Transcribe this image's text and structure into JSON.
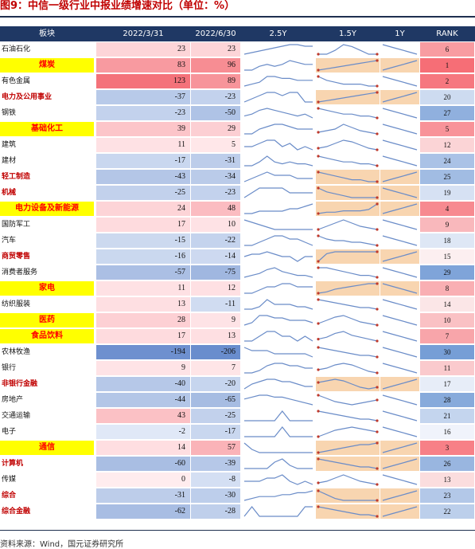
{
  "title": "图9：中信一级行业中报业绩增速对比（单位：%）",
  "source": "资料来源：Wind，国元证券研究所",
  "columns": [
    "板块",
    "2022/3/31",
    "2022/6/30",
    "2.5Y",
    "1.5Y",
    "1Y",
    "RANK"
  ],
  "colors": {
    "header_bg": "#1f3864",
    "highlight_bg": "#ffff00",
    "highlight_text": "#ff0000",
    "spark_line": "#6a8cc8",
    "spark_bg_orange": "#f8d5b0",
    "spark_point": "#c0392b"
  },
  "chart_data": {
    "type": "table",
    "rows": [
      {
        "name": "石油石化",
        "q1": 23,
        "h1": 23,
        "rank": 6,
        "style": "normal"
      },
      {
        "name": "煤炭",
        "q1": 83,
        "h1": 96,
        "rank": 1,
        "style": "hl"
      },
      {
        "name": "有色金属",
        "q1": 123,
        "h1": 89,
        "rank": 2,
        "style": "normal"
      },
      {
        "name": "电力及公用事业",
        "q1": -37,
        "h1": -23,
        "rank": 20,
        "style": "bold"
      },
      {
        "name": "钢铁",
        "q1": -23,
        "h1": -50,
        "rank": 27,
        "style": "normal"
      },
      {
        "name": "基础化工",
        "q1": 39,
        "h1": 29,
        "rank": 5,
        "style": "hl"
      },
      {
        "name": "建筑",
        "q1": 11,
        "h1": 5,
        "rank": 12,
        "style": "normal"
      },
      {
        "name": "建材",
        "q1": -17,
        "h1": -31,
        "rank": 24,
        "style": "normal"
      },
      {
        "name": "轻工制造",
        "q1": -43,
        "h1": -34,
        "rank": 25,
        "style": "bold"
      },
      {
        "name": "机械",
        "q1": -25,
        "h1": -23,
        "rank": 19,
        "style": "bold"
      },
      {
        "name": "电力设备及新能源",
        "q1": 24,
        "h1": 48,
        "rank": 4,
        "style": "hl"
      },
      {
        "name": "国防军工",
        "q1": 17,
        "h1": 10,
        "rank": 9,
        "style": "normal"
      },
      {
        "name": "汽车",
        "q1": -15,
        "h1": -22,
        "rank": 18,
        "style": "normal"
      },
      {
        "name": "商贸零售",
        "q1": -16,
        "h1": -14,
        "rank": 15,
        "style": "bold"
      },
      {
        "name": "消费者服务",
        "q1": -57,
        "h1": -75,
        "rank": 29,
        "style": "normal"
      },
      {
        "name": "家电",
        "q1": 11,
        "h1": 12,
        "rank": 8,
        "style": "hl"
      },
      {
        "name": "纺织服装",
        "q1": 13,
        "h1": -11,
        "rank": 14,
        "style": "normal"
      },
      {
        "name": "医药",
        "q1": 28,
        "h1": 9,
        "rank": 10,
        "style": "hl"
      },
      {
        "name": "食品饮料",
        "q1": 17,
        "h1": 13,
        "rank": 7,
        "style": "hl"
      },
      {
        "name": "农林牧渔",
        "q1": -194,
        "h1": -206,
        "rank": 30,
        "style": "normal"
      },
      {
        "name": "银行",
        "q1": 9,
        "h1": 7,
        "rank": 11,
        "style": "normal"
      },
      {
        "name": "非银行金融",
        "q1": -40,
        "h1": -20,
        "rank": 17,
        "style": "bold"
      },
      {
        "name": "房地产",
        "q1": -44,
        "h1": -65,
        "rank": 28,
        "style": "normal"
      },
      {
        "name": "交通运输",
        "q1": 43,
        "h1": -25,
        "rank": 21,
        "style": "normal"
      },
      {
        "name": "电子",
        "q1": -2,
        "h1": -17,
        "rank": 16,
        "style": "normal"
      },
      {
        "name": "通信",
        "q1": 14,
        "h1": 57,
        "rank": 3,
        "style": "hl"
      },
      {
        "name": "计算机",
        "q1": -60,
        "h1": -39,
        "rank": 26,
        "style": "bold"
      },
      {
        "name": "传媒",
        "q1": 0,
        "h1": -8,
        "rank": 13,
        "style": "normal"
      },
      {
        "name": "综合",
        "q1": -31,
        "h1": -30,
        "rank": 23,
        "style": "bold"
      },
      {
        "name": "综合金融",
        "q1": -62,
        "h1": -28,
        "rank": 22,
        "style": "bold"
      }
    ],
    "sparklines_2_5y": [
      [
        2,
        3,
        4,
        5,
        6,
        7,
        8,
        8,
        7,
        7
      ],
      [
        3,
        3,
        5,
        6,
        5,
        6,
        8,
        7,
        6,
        6
      ],
      [
        3,
        4,
        5,
        8,
        8,
        7,
        7,
        6,
        6,
        6
      ],
      [
        3,
        4,
        5,
        6,
        6,
        5,
        6,
        6,
        3,
        3
      ],
      [
        3,
        4,
        6,
        7,
        6,
        5,
        4,
        3,
        4,
        2
      ],
      [
        3,
        3,
        5,
        6,
        7,
        7,
        6,
        5,
        5,
        5
      ],
      [
        4,
        4,
        5,
        6,
        6,
        4,
        5,
        3,
        4,
        3
      ],
      [
        3,
        3,
        5,
        8,
        5,
        4,
        5,
        4,
        4,
        3
      ],
      [
        3,
        4,
        5,
        6,
        5,
        5,
        5,
        4,
        4,
        4
      ],
      [
        3,
        4,
        5,
        5,
        5,
        5,
        4,
        4,
        4,
        4
      ],
      [
        3,
        3,
        4,
        4,
        4,
        4,
        5,
        5,
        6,
        7
      ],
      [
        7,
        6,
        5,
        4,
        3,
        3,
        3,
        3,
        3,
        3
      ],
      [
        3,
        3,
        4,
        5,
        6,
        6,
        5,
        5,
        4,
        3
      ],
      [
        4,
        5,
        5,
        6,
        5,
        4,
        4,
        2,
        4,
        4
      ],
      [
        3,
        4,
        5,
        7,
        8,
        6,
        5,
        4,
        4,
        3
      ],
      [
        3,
        3,
        4,
        5,
        5,
        6,
        6,
        5,
        5,
        5
      ],
      [
        3,
        3,
        4,
        7,
        5,
        5,
        5,
        4,
        4,
        3
      ],
      [
        3,
        4,
        7,
        7,
        6,
        6,
        5,
        5,
        5,
        4
      ],
      [
        4,
        4,
        5,
        6,
        6,
        5,
        5,
        4,
        5,
        4
      ],
      [
        5,
        4,
        4,
        4,
        3,
        3,
        3,
        3,
        3,
        2
      ],
      [
        3,
        3,
        4,
        6,
        7,
        7,
        6,
        6,
        5,
        5
      ],
      [
        3,
        5,
        6,
        7,
        7,
        6,
        6,
        5,
        4,
        4
      ],
      [
        5,
        6,
        7,
        7,
        6,
        6,
        5,
        4,
        3,
        2
      ],
      [
        4,
        4,
        4,
        4,
        4,
        8,
        4,
        4,
        4,
        4
      ],
      [
        4,
        4,
        4,
        4,
        4,
        7,
        4,
        4,
        4,
        4
      ],
      [
        7,
        5,
        4,
        4,
        4,
        4,
        4,
        4,
        4,
        4
      ],
      [
        4,
        4,
        4,
        4,
        6,
        7,
        5,
        4,
        4,
        4
      ],
      [
        4,
        4,
        4,
        5,
        5,
        6,
        4,
        3,
        4,
        3
      ],
      [
        2,
        3,
        4,
        4,
        4,
        5,
        5,
        6,
        6,
        7
      ],
      [
        3,
        4,
        3,
        3,
        3,
        3,
        3,
        3,
        4,
        4
      ]
    ],
    "sparklines_1_5y": [
      [
        3,
        3,
        5,
        8,
        7,
        5,
        3,
        3
      ],
      [
        1,
        2,
        3,
        4,
        5,
        6,
        7,
        8
      ],
      [
        8,
        6,
        5,
        4,
        4,
        4,
        3,
        3
      ],
      [
        1,
        2,
        3,
        4,
        5,
        6,
        7,
        8
      ],
      [
        7,
        6,
        5,
        4,
        4,
        3,
        3,
        2
      ],
      [
        3,
        4,
        5,
        8,
        6,
        4,
        3,
        2
      ],
      [
        3,
        4,
        6,
        8,
        7,
        5,
        3,
        2
      ],
      [
        7,
        6,
        5,
        4,
        4,
        3,
        3,
        2
      ],
      [
        8,
        7,
        6,
        5,
        4,
        4,
        3,
        3
      ],
      [
        8,
        6,
        5,
        4,
        3,
        3,
        3,
        3
      ],
      [
        1,
        2,
        2,
        3,
        3,
        3,
        4,
        8
      ],
      [
        2,
        4,
        6,
        8,
        6,
        4,
        3,
        2
      ],
      [
        8,
        6,
        5,
        5,
        4,
        4,
        3,
        2
      ],
      [
        2,
        6,
        7,
        7,
        7,
        7,
        7,
        7
      ],
      [
        7,
        7,
        6,
        5,
        4,
        3,
        3,
        2
      ],
      [
        1,
        2,
        4,
        5,
        6,
        7,
        8,
        8
      ],
      [
        8,
        7,
        6,
        5,
        4,
        3,
        3,
        2
      ],
      [
        3,
        5,
        7,
        8,
        6,
        4,
        3,
        2
      ],
      [
        3,
        4,
        6,
        7,
        5,
        4,
        3,
        2
      ],
      [
        8,
        7,
        6,
        5,
        4,
        3,
        3,
        2
      ],
      [
        4,
        5,
        7,
        8,
        7,
        5,
        3,
        2
      ],
      [
        6,
        7,
        8,
        7,
        5,
        3,
        2,
        3
      ],
      [
        8,
        6,
        4,
        3,
        2,
        3,
        4,
        5
      ],
      [
        8,
        7,
        6,
        5,
        4,
        3,
        3,
        2
      ],
      [
        2,
        4,
        6,
        7,
        8,
        7,
        6,
        5
      ],
      [
        2,
        3,
        4,
        5,
        6,
        7,
        7,
        8
      ],
      [
        8,
        7,
        6,
        5,
        4,
        3,
        3,
        2
      ],
      [
        3,
        4,
        6,
        8,
        6,
        4,
        3,
        2
      ],
      [
        8,
        6,
        4,
        3,
        3,
        3,
        3,
        3
      ],
      [
        8,
        7,
        6,
        5,
        4,
        3,
        3,
        2
      ]
    ],
    "orange_1_5y": [
      false,
      true,
      false,
      true,
      false,
      false,
      false,
      false,
      true,
      true,
      true,
      false,
      false,
      true,
      false,
      true,
      false,
      false,
      false,
      false,
      false,
      true,
      false,
      false,
      false,
      true,
      true,
      false,
      true,
      true
    ],
    "orange_1y": [
      false,
      true,
      false,
      true,
      false,
      false,
      false,
      false,
      true,
      true,
      true,
      false,
      false,
      true,
      false,
      true,
      false,
      false,
      false,
      false,
      false,
      true,
      false,
      false,
      false,
      true,
      true,
      false,
      true,
      true
    ],
    "oneyear_up": [
      false,
      true,
      false,
      true,
      false,
      false,
      false,
      false,
      true,
      false,
      true,
      false,
      false,
      true,
      false,
      false,
      false,
      false,
      false,
      false,
      false,
      true,
      false,
      false,
      false,
      true,
      true,
      false,
      true,
      true
    ]
  }
}
